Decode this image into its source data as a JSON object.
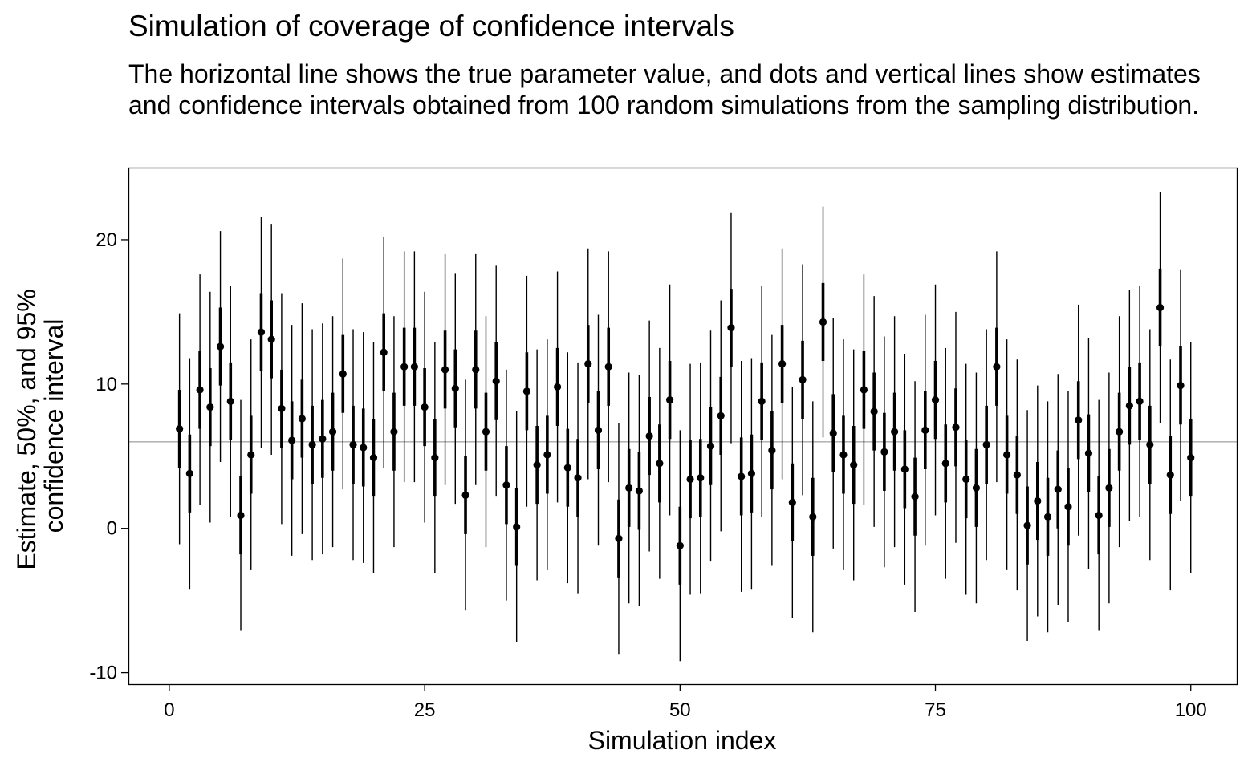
{
  "chart_data": {
    "type": "scatter",
    "title": "Simulation of coverage of confidence intervals",
    "subtitle": "The horizontal line shows the true parameter value, and dots and vertical lines show estimates and confidence intervals obtained from 100 random simulations from the sampling distribution.",
    "xlabel": "Simulation index",
    "ylabel": "Estimate, 50%, and 95% confidence interval",
    "ylabel_lines": [
      "Estimate, 50%, and 95%",
      "confidence interval"
    ],
    "xlim": [
      -4,
      104.5
    ],
    "ylim": [
      -10.8,
      25
    ],
    "xticks": [
      0,
      25,
      50,
      75,
      100
    ],
    "xtick_labels": [
      "0",
      "25",
      "50",
      "75",
      "100"
    ],
    "yticks": [
      -10,
      0,
      10,
      20
    ],
    "ytick_labels": [
      "-10",
      "0",
      "10",
      "20"
    ],
    "true_value": 6,
    "grid": false,
    "legend": "none",
    "colors": {
      "points": "#000000",
      "true_line": "#aaaaaa",
      "frame": "#000000"
    },
    "series": [
      {
        "x": [
          1,
          2,
          3,
          4,
          5,
          6,
          7,
          8,
          9,
          10,
          11,
          12,
          13,
          14,
          15,
          16,
          17,
          18,
          19,
          20,
          21,
          22,
          23,
          24,
          25,
          26,
          27,
          28,
          29,
          30,
          31,
          32,
          33,
          34,
          35,
          36,
          37,
          38,
          39,
          40,
          41,
          42,
          43,
          44,
          45,
          46,
          47,
          48,
          49,
          50,
          51,
          52,
          53,
          54,
          55,
          56,
          57,
          58,
          59,
          60,
          61,
          62,
          63,
          64,
          65,
          66,
          67,
          68,
          69,
          70,
          71,
          72,
          73,
          74,
          75,
          76,
          77,
          78,
          79,
          80,
          81,
          82,
          83,
          84,
          85,
          86,
          87,
          88,
          89,
          90,
          91,
          92,
          93,
          94,
          95,
          96,
          97,
          98,
          99,
          100
        ],
        "estimate": [
          6.9,
          3.8,
          9.6,
          8.4,
          12.6,
          8.8,
          0.9,
          5.1,
          13.6,
          13.1,
          8.3,
          6.1,
          7.6,
          5.8,
          6.2,
          6.7,
          10.7,
          5.8,
          5.6,
          4.9,
          12.2,
          6.7,
          11.2,
          11.2,
          8.4,
          4.9,
          11.0,
          9.7,
          2.3,
          11.0,
          6.7,
          10.2,
          3.0,
          0.1,
          9.5,
          4.4,
          5.1,
          9.8,
          4.2,
          3.5,
          11.4,
          6.8,
          11.2,
          -0.7,
          2.8,
          2.6,
          6.4,
          4.5,
          8.9,
          -1.2,
          3.4,
          3.5,
          5.7,
          7.8,
          13.9,
          3.6,
          3.8,
          8.8,
          5.4,
          11.4,
          1.8,
          10.3,
          0.8,
          14.3,
          6.6,
          5.1,
          4.4,
          9.6,
          8.1,
          5.3,
          6.7,
          4.1,
          2.2,
          6.8,
          8.9,
          4.5,
          7.0,
          3.4,
          2.8,
          5.8,
          11.2,
          5.1,
          3.7,
          0.2,
          1.9,
          0.8,
          2.7,
          1.5,
          7.5,
          5.2,
          0.9,
          2.8,
          6.7,
          8.5,
          8.8,
          5.8,
          15.3,
          3.7,
          9.9,
          4.9
        ],
        "ci50_low": [
          4.2,
          1.1,
          6.9,
          5.7,
          9.9,
          6.1,
          -1.8,
          2.4,
          10.9,
          10.4,
          5.6,
          3.4,
          4.9,
          3.1,
          3.5,
          4.0,
          8.0,
          3.1,
          2.9,
          2.2,
          9.5,
          4.0,
          8.5,
          8.5,
          5.7,
          2.2,
          8.3,
          7.0,
          -0.4,
          8.3,
          4.0,
          7.5,
          0.3,
          -2.6,
          6.8,
          1.7,
          2.4,
          7.1,
          1.5,
          0.8,
          8.7,
          4.1,
          8.5,
          -3.4,
          0.1,
          -0.1,
          3.7,
          1.8,
          6.2,
          -3.9,
          0.7,
          0.8,
          3.0,
          5.1,
          11.2,
          0.9,
          1.1,
          6.1,
          2.7,
          8.7,
          -0.9,
          7.6,
          -1.9,
          11.6,
          3.9,
          2.4,
          1.7,
          6.9,
          5.4,
          2.6,
          4.0,
          1.4,
          -0.5,
          4.1,
          6.2,
          1.8,
          4.3,
          0.7,
          0.1,
          3.1,
          8.5,
          2.4,
          1.0,
          -2.5,
          -0.8,
          -1.9,
          0.0,
          -1.2,
          4.8,
          2.5,
          -1.8,
          0.1,
          4.0,
          5.8,
          6.1,
          3.1,
          12.6,
          1.0,
          7.2,
          2.2
        ],
        "ci50_high": [
          9.6,
          6.5,
          12.3,
          11.1,
          15.3,
          11.5,
          3.6,
          7.8,
          16.3,
          15.8,
          11.0,
          8.8,
          10.3,
          8.5,
          8.9,
          9.4,
          13.4,
          8.5,
          8.3,
          7.6,
          14.9,
          9.4,
          13.9,
          13.9,
          11.1,
          7.6,
          13.7,
          12.4,
          5.0,
          13.7,
          9.4,
          12.9,
          5.7,
          2.8,
          12.2,
          7.1,
          7.8,
          12.5,
          6.9,
          6.2,
          14.1,
          9.5,
          13.9,
          2.0,
          5.5,
          5.3,
          9.1,
          7.2,
          11.6,
          1.5,
          6.1,
          6.2,
          8.4,
          10.5,
          16.6,
          6.3,
          6.5,
          11.5,
          8.1,
          14.1,
          4.5,
          13.0,
          3.5,
          17.0,
          9.3,
          7.8,
          7.1,
          12.3,
          10.8,
          8.0,
          9.4,
          6.8,
          4.9,
          9.5,
          11.6,
          7.2,
          9.7,
          6.1,
          5.5,
          8.5,
          13.9,
          7.8,
          6.4,
          2.9,
          4.6,
          3.5,
          5.4,
          4.2,
          10.2,
          7.9,
          3.6,
          5.5,
          9.4,
          11.2,
          11.5,
          8.5,
          18.0,
          6.4,
          12.6,
          7.6
        ],
        "ci95_low": [
          -1.1,
          -4.2,
          1.6,
          0.4,
          4.6,
          0.8,
          -7.1,
          -2.9,
          5.6,
          5.1,
          0.3,
          -1.9,
          -0.4,
          -2.2,
          -1.8,
          -1.3,
          2.7,
          -2.2,
          -2.4,
          -3.1,
          4.2,
          -1.3,
          3.2,
          3.2,
          0.4,
          -3.1,
          3.0,
          1.7,
          -5.7,
          3.0,
          -1.3,
          2.2,
          -5.0,
          -7.9,
          1.5,
          -3.6,
          -2.9,
          1.8,
          -3.8,
          -4.5,
          3.4,
          -1.2,
          3.2,
          -8.7,
          -5.2,
          -5.4,
          -1.6,
          -3.5,
          0.9,
          -9.2,
          -4.6,
          -4.5,
          -2.3,
          -0.2,
          5.9,
          -4.4,
          -4.2,
          0.8,
          -2.6,
          3.4,
          -6.2,
          2.3,
          -7.2,
          6.3,
          -1.4,
          -2.9,
          -3.6,
          1.6,
          0.1,
          -2.7,
          -1.3,
          -3.9,
          -5.8,
          -1.2,
          0.9,
          -3.5,
          -1.0,
          -4.6,
          -5.2,
          -2.2,
          3.2,
          -2.9,
          -4.3,
          -7.8,
          -6.1,
          -7.2,
          -5.3,
          -6.5,
          -0.5,
          -2.8,
          -7.1,
          -5.2,
          -1.3,
          0.5,
          0.8,
          -2.2,
          7.3,
          -4.3,
          1.9,
          -3.1
        ],
        "ci95_high": [
          14.9,
          11.8,
          17.6,
          16.4,
          20.6,
          16.8,
          8.9,
          13.1,
          21.6,
          21.1,
          16.3,
          14.1,
          15.6,
          13.8,
          14.2,
          14.7,
          18.7,
          13.8,
          13.6,
          12.9,
          20.2,
          14.7,
          19.2,
          19.2,
          16.4,
          12.9,
          19.0,
          17.7,
          10.3,
          19.0,
          14.7,
          18.2,
          11.0,
          8.1,
          17.5,
          12.4,
          13.1,
          17.8,
          12.2,
          11.5,
          19.4,
          14.8,
          19.2,
          7.3,
          10.8,
          10.6,
          14.4,
          12.5,
          16.9,
          6.8,
          11.4,
          11.5,
          13.7,
          15.8,
          21.9,
          11.6,
          11.8,
          16.8,
          13.4,
          19.4,
          9.8,
          18.3,
          8.8,
          22.3,
          14.6,
          13.1,
          12.4,
          17.6,
          16.1,
          13.3,
          14.7,
          12.1,
          10.2,
          14.8,
          16.9,
          12.5,
          15.0,
          11.4,
          10.8,
          13.8,
          19.2,
          13.1,
          11.7,
          8.2,
          9.9,
          8.8,
          10.7,
          9.5,
          15.5,
          13.2,
          8.9,
          10.8,
          14.7,
          16.5,
          16.8,
          13.8,
          23.3,
          11.7,
          17.9,
          12.9
        ]
      }
    ]
  }
}
